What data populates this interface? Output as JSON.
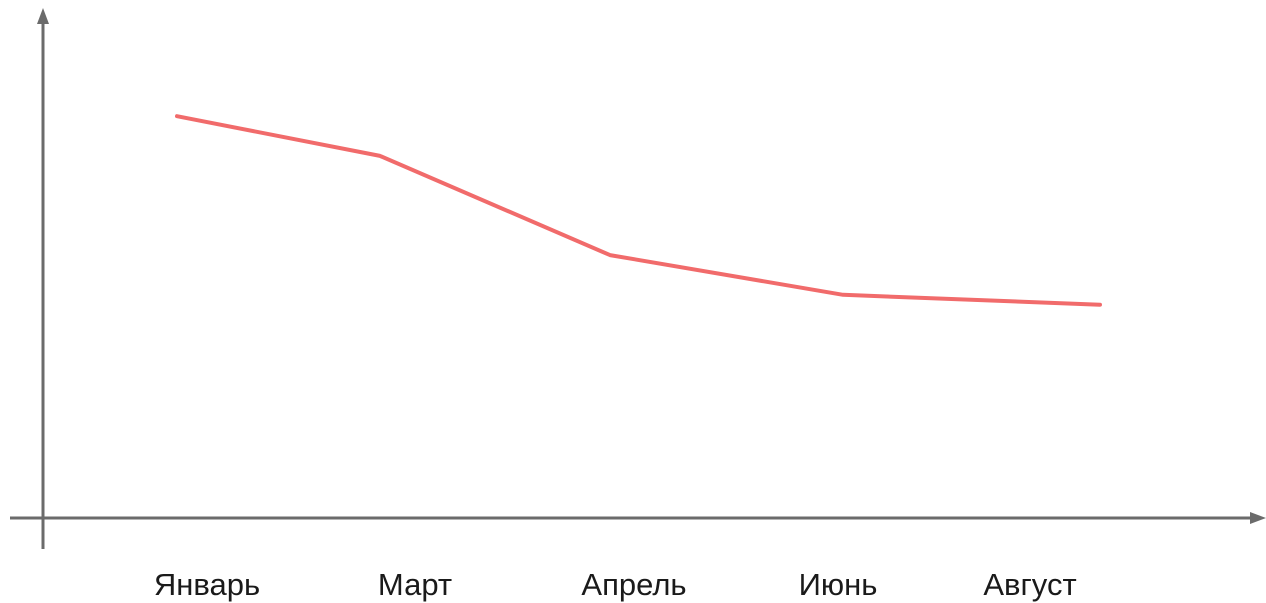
{
  "chart_data": {
    "type": "line",
    "categories": [
      "Январь",
      "Март",
      "Апрель",
      "Июнь",
      "Август"
    ],
    "series": [
      {
        "values": [
          81,
          73,
          53,
          45,
          43
        ],
        "color": "#f16b6b"
      }
    ],
    "ylim": [
      0,
      100
    ],
    "y_ticks_shown": false,
    "grid": false,
    "legend": "none",
    "axis_color": "#6b6b6b"
  }
}
